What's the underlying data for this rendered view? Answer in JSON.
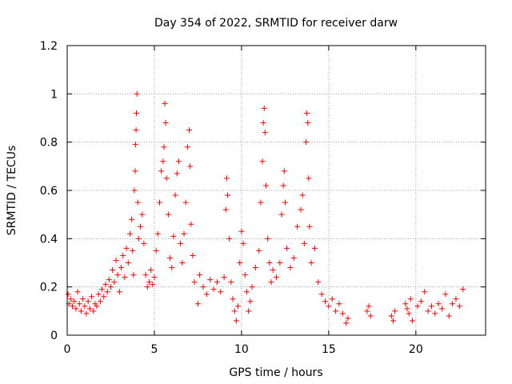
{
  "chart_data": {
    "type": "scatter",
    "title": "Day 354 of 2022, SRMTID for receiver darw",
    "xlabel": "GPS time / hours",
    "ylabel": "SRMTID / TECUs",
    "xlim": [
      0,
      24
    ],
    "ylim": [
      0,
      1.2
    ],
    "xticks": [
      0,
      5,
      10,
      15,
      20
    ],
    "xtick_labels": [
      "0",
      "5",
      "10",
      "15",
      "20"
    ],
    "yticks": [
      0,
      0.2,
      0.4,
      0.6,
      0.8,
      1.0,
      1.2
    ],
    "ytick_labels": [
      "0",
      "0.2",
      "0.4",
      "0.6",
      "0.8",
      "1",
      "1.2"
    ],
    "grid": true,
    "marker": "+",
    "marker_color": "#ff0000",
    "series": [
      {
        "name": "SRMTID",
        "points": [
          [
            0.05,
            0.17
          ],
          [
            0.1,
            0.13
          ],
          [
            0.2,
            0.15
          ],
          [
            0.3,
            0.12
          ],
          [
            0.4,
            0.14
          ],
          [
            0.5,
            0.11
          ],
          [
            0.6,
            0.18
          ],
          [
            0.7,
            0.13
          ],
          [
            0.8,
            0.1
          ],
          [
            0.9,
            0.15
          ],
          [
            1.0,
            0.12
          ],
          [
            1.1,
            0.09
          ],
          [
            1.2,
            0.14
          ],
          [
            1.3,
            0.11
          ],
          [
            1.4,
            0.16
          ],
          [
            1.5,
            0.1
          ],
          [
            1.6,
            0.13
          ],
          [
            1.7,
            0.12
          ],
          [
            1.8,
            0.17
          ],
          [
            1.9,
            0.14
          ],
          [
            2.0,
            0.19
          ],
          [
            2.1,
            0.16
          ],
          [
            2.2,
            0.21
          ],
          [
            2.3,
            0.18
          ],
          [
            2.4,
            0.23
          ],
          [
            2.5,
            0.2
          ],
          [
            2.6,
            0.27
          ],
          [
            2.7,
            0.22
          ],
          [
            2.8,
            0.31
          ],
          [
            2.9,
            0.25
          ],
          [
            3.0,
            0.18
          ],
          [
            3.1,
            0.28
          ],
          [
            3.2,
            0.33
          ],
          [
            3.3,
            0.24
          ],
          [
            3.4,
            0.36
          ],
          [
            3.5,
            0.3
          ],
          [
            3.6,
            0.42
          ],
          [
            3.7,
            0.48
          ],
          [
            3.75,
            0.35
          ],
          [
            3.8,
            0.25
          ],
          [
            3.85,
            0.6
          ],
          [
            3.9,
            0.68
          ],
          [
            3.92,
            0.79
          ],
          [
            3.95,
            0.85
          ],
          [
            3.97,
            0.92
          ],
          [
            4.0,
            1.0
          ],
          [
            4.05,
            0.55
          ],
          [
            4.1,
            0.4
          ],
          [
            4.2,
            0.45
          ],
          [
            4.3,
            0.5
          ],
          [
            4.4,
            0.38
          ],
          [
            4.5,
            0.25
          ],
          [
            4.6,
            0.2
          ],
          [
            4.7,
            0.22
          ],
          [
            4.8,
            0.27
          ],
          [
            4.9,
            0.21
          ],
          [
            5.0,
            0.24
          ],
          [
            5.1,
            0.35
          ],
          [
            5.2,
            0.42
          ],
          [
            5.3,
            0.55
          ],
          [
            5.4,
            0.68
          ],
          [
            5.5,
            0.72
          ],
          [
            5.55,
            0.78
          ],
          [
            5.6,
            0.96
          ],
          [
            5.65,
            0.88
          ],
          [
            5.7,
            0.65
          ],
          [
            5.8,
            0.5
          ],
          [
            5.9,
            0.32
          ],
          [
            6.0,
            0.28
          ],
          [
            6.1,
            0.41
          ],
          [
            6.2,
            0.58
          ],
          [
            6.3,
            0.67
          ],
          [
            6.4,
            0.72
          ],
          [
            6.5,
            0.38
          ],
          [
            6.6,
            0.3
          ],
          [
            6.7,
            0.42
          ],
          [
            6.8,
            0.55
          ],
          [
            6.9,
            0.78
          ],
          [
            7.0,
            0.85
          ],
          [
            7.05,
            0.7
          ],
          [
            7.1,
            0.46
          ],
          [
            7.2,
            0.33
          ],
          [
            7.3,
            0.22
          ],
          [
            7.5,
            0.13
          ],
          [
            7.6,
            0.25
          ],
          [
            7.8,
            0.2
          ],
          [
            8.0,
            0.17
          ],
          [
            8.2,
            0.23
          ],
          [
            8.4,
            0.19
          ],
          [
            8.6,
            0.22
          ],
          [
            8.8,
            0.18
          ],
          [
            9.0,
            0.24
          ],
          [
            9.1,
            0.52
          ],
          [
            9.15,
            0.65
          ],
          [
            9.2,
            0.58
          ],
          [
            9.3,
            0.4
          ],
          [
            9.4,
            0.22
          ],
          [
            9.5,
            0.15
          ],
          [
            9.6,
            0.1
          ],
          [
            9.7,
            0.06
          ],
          [
            9.8,
            0.12
          ],
          [
            9.9,
            0.3
          ],
          [
            10.0,
            0.43
          ],
          [
            10.1,
            0.38
          ],
          [
            10.2,
            0.25
          ],
          [
            10.3,
            0.18
          ],
          [
            10.4,
            0.1
          ],
          [
            10.5,
            0.14
          ],
          [
            10.6,
            0.2
          ],
          [
            10.8,
            0.28
          ],
          [
            11.0,
            0.35
          ],
          [
            11.1,
            0.55
          ],
          [
            11.2,
            0.72
          ],
          [
            11.25,
            0.88
          ],
          [
            11.3,
            0.94
          ],
          [
            11.35,
            0.84
          ],
          [
            11.4,
            0.62
          ],
          [
            11.5,
            0.4
          ],
          [
            11.6,
            0.3
          ],
          [
            11.7,
            0.22
          ],
          [
            11.8,
            0.27
          ],
          [
            12.0,
            0.24
          ],
          [
            12.2,
            0.3
          ],
          [
            12.3,
            0.5
          ],
          [
            12.4,
            0.62
          ],
          [
            12.45,
            0.68
          ],
          [
            12.5,
            0.55
          ],
          [
            12.6,
            0.36
          ],
          [
            12.8,
            0.28
          ],
          [
            13.0,
            0.32
          ],
          [
            13.2,
            0.45
          ],
          [
            13.4,
            0.52
          ],
          [
            13.5,
            0.58
          ],
          [
            13.6,
            0.38
          ],
          [
            13.7,
            0.8
          ],
          [
            13.75,
            0.92
          ],
          [
            13.8,
            0.88
          ],
          [
            13.85,
            0.65
          ],
          [
            13.9,
            0.45
          ],
          [
            14.0,
            0.3
          ],
          [
            14.2,
            0.36
          ],
          [
            14.4,
            0.22
          ],
          [
            14.6,
            0.17
          ],
          [
            14.8,
            0.14
          ],
          [
            15.0,
            0.12
          ],
          [
            15.2,
            0.15
          ],
          [
            15.4,
            0.1
          ],
          [
            15.6,
            0.13
          ],
          [
            15.8,
            0.09
          ],
          [
            16.0,
            0.05
          ],
          [
            16.1,
            0.07
          ],
          [
            17.2,
            0.1
          ],
          [
            17.3,
            0.12
          ],
          [
            17.4,
            0.08
          ],
          [
            18.6,
            0.08
          ],
          [
            18.7,
            0.06
          ],
          [
            18.8,
            0.1
          ],
          [
            19.4,
            0.13
          ],
          [
            19.5,
            0.11
          ],
          [
            19.6,
            0.09
          ],
          [
            19.7,
            0.15
          ],
          [
            19.8,
            0.06
          ],
          [
            20.1,
            0.12
          ],
          [
            20.3,
            0.14
          ],
          [
            20.5,
            0.18
          ],
          [
            20.7,
            0.1
          ],
          [
            20.9,
            0.12
          ],
          [
            21.1,
            0.09
          ],
          [
            21.3,
            0.13
          ],
          [
            21.5,
            0.11
          ],
          [
            21.7,
            0.17
          ],
          [
            21.9,
            0.08
          ],
          [
            22.1,
            0.13
          ],
          [
            22.3,
            0.15
          ],
          [
            22.5,
            0.12
          ],
          [
            22.7,
            0.19
          ]
        ]
      }
    ]
  }
}
